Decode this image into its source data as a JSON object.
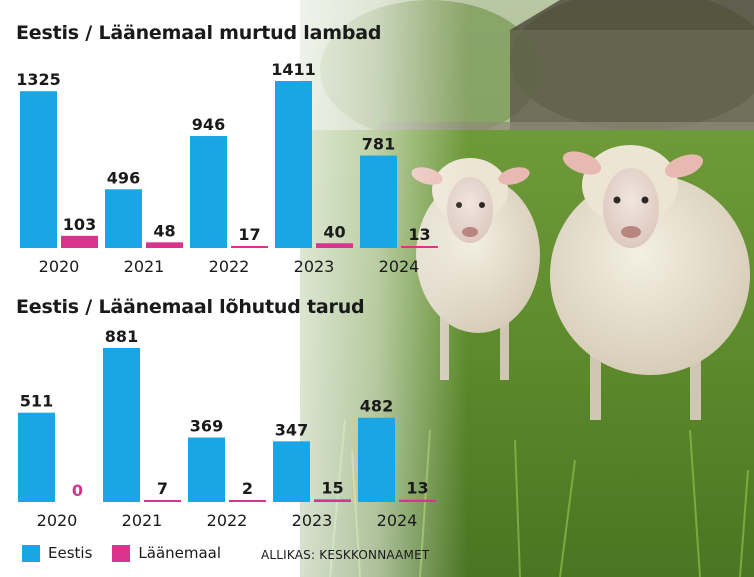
{
  "colors": {
    "eestis": "#1aa6e4",
    "laanemaal": "#d9338d"
  },
  "legend": {
    "eestis": "Eestis",
    "laanemaal": "Läänemaal"
  },
  "source": "ALLIKAS: KESKKONNAAMET",
  "chart_data": [
    {
      "type": "bar",
      "title": "Eestis / Läänemaal murtud lambad",
      "categories": [
        "2020",
        "2021",
        "2022",
        "2023",
        "2024"
      ],
      "series": [
        {
          "name": "Eestis",
          "values": [
            1325,
            496,
            946,
            1411,
            781
          ]
        },
        {
          "name": "Läänemaal",
          "values": [
            103,
            48,
            17,
            40,
            13
          ]
        }
      ]
    },
    {
      "type": "bar",
      "title": "Eestis / Läänemaal lõhutud tarud",
      "categories": [
        "2020",
        "2021",
        "2022",
        "2023",
        "2024"
      ],
      "series": [
        {
          "name": "Eestis",
          "values": [
            511,
            881,
            369,
            347,
            482
          ]
        },
        {
          "name": "Läänemaal",
          "values": [
            0,
            7,
            2,
            15,
            13
          ]
        }
      ]
    }
  ]
}
